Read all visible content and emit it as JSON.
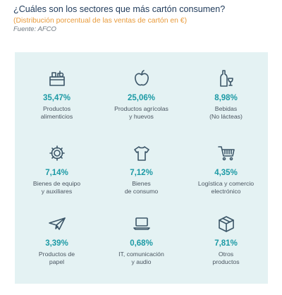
{
  "title": "¿Cuáles son los sectores que más cartón consumen?",
  "subtitle": "(Distribución porcentual de las ventas de cartón en €)",
  "source": "Fuente: AFCO",
  "chart_data": {
    "type": "table",
    "unit": "%",
    "categories": [
      "Productos alimenticios",
      "Productos agrícolas y huevos",
      "Bebidas (No lácteas)",
      "Bienes de equipo y auxiliares",
      "Bienes de consumo",
      "Logística y comercio electrónico",
      "Productos de papel",
      "IT, comunicación y audio",
      "Otros productos"
    ],
    "values": [
      35.47,
      25.06,
      8.98,
      7.14,
      7.12,
      4.35,
      3.39,
      0.68,
      7.81
    ],
    "items": [
      {
        "icon": "food-basket-icon",
        "value_label": "35,47%",
        "label": "Productos\nalimenticios"
      },
      {
        "icon": "apple-icon",
        "value_label": "25,06%",
        "label": "Productos agrícolas\ny huevos"
      },
      {
        "icon": "bottle-glass-icon",
        "value_label": "8,98%",
        "label": "Bebidas\n(No lácteas)"
      },
      {
        "icon": "gear-icon",
        "value_label": "7,14%",
        "label": "Bienes de equipo\ny auxiliares"
      },
      {
        "icon": "tshirt-icon",
        "value_label": "7,12%",
        "label": "Bienes\nde consumo"
      },
      {
        "icon": "shopping-cart-icon",
        "value_label": "4,35%",
        "label": "Logística y comercio\nelectrónico"
      },
      {
        "icon": "paper-plane-icon",
        "value_label": "3,39%",
        "label": "Productos de\npapel"
      },
      {
        "icon": "laptop-icon",
        "value_label": "0,68%",
        "label": "IT, comunicación\ny audio"
      },
      {
        "icon": "box-icon",
        "value_label": "7,81%",
        "label": "Otros\nproductos"
      }
    ]
  },
  "colors": {
    "title": "#1f3a5a",
    "subtitle": "#e89a3a",
    "panel_background": "#e4f2f3",
    "value": "#1c9aa5",
    "icon_stroke": "#3c5668"
  }
}
